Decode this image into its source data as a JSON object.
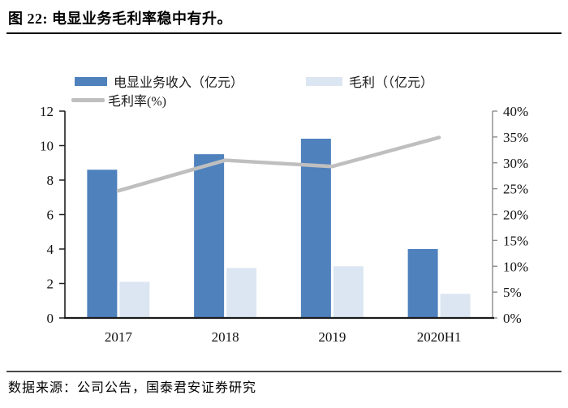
{
  "header": {
    "title": "图 22:  电显业务毛利率稳中有升。"
  },
  "footer": {
    "source": "数据来源：公司公告，国泰君安证券研究"
  },
  "legend": {
    "items": [
      {
        "label": "电显业务收入（亿元）",
        "type": "bar",
        "color": "#4F81BD"
      },
      {
        "label": "毛利（（亿元）",
        "type": "bar",
        "color": "#DCE6F2"
      },
      {
        "label": "毛利率(%)",
        "type": "line",
        "color": "#BFBFBF"
      }
    ]
  },
  "chart_data": {
    "type": "bar",
    "subtype": "grouped-bars-with-line",
    "categories": [
      "2017",
      "2018",
      "2019",
      "2020H1"
    ],
    "series": [
      {
        "name": "电显业务收入（亿元）",
        "type": "bar",
        "axis": "left",
        "color": "#4F81BD",
        "values": [
          8.6,
          9.5,
          10.4,
          4.0
        ]
      },
      {
        "name": "毛利（（亿元）",
        "type": "bar",
        "axis": "left",
        "color": "#DCE6F2",
        "values": [
          2.1,
          2.9,
          3.0,
          1.4
        ]
      },
      {
        "name": "毛利率(%)",
        "type": "line",
        "axis": "right",
        "color": "#BFBFBF",
        "values": [
          24.6,
          30.5,
          29.3,
          34.9
        ]
      }
    ],
    "left_axis": {
      "min": 0,
      "max": 12,
      "step": 2,
      "labels": [
        "0",
        "2",
        "4",
        "6",
        "8",
        "10",
        "12"
      ],
      "color": "#1F1F1F"
    },
    "right_axis": {
      "min": 0,
      "max": 40,
      "step": 5,
      "labels": [
        "0%",
        "5%",
        "10%",
        "15%",
        "20%",
        "25%",
        "30%",
        "35%",
        "40%"
      ],
      "color": "#8C8C8C"
    },
    "grid": "off",
    "legend_position": "top-left",
    "title": "",
    "xlabel": "",
    "ylabel": ""
  }
}
